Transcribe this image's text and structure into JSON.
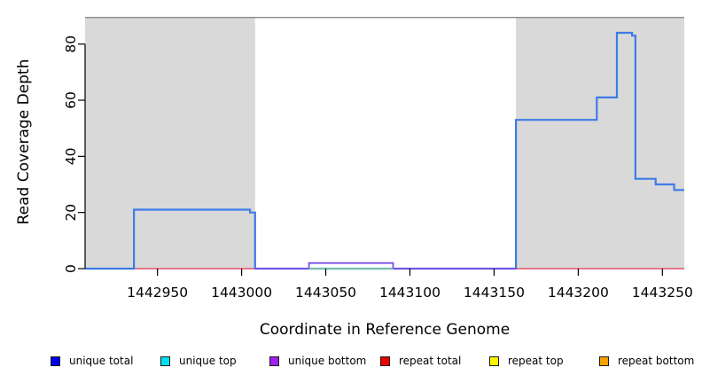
{
  "figure": {
    "x_axis_title": "Coordinate in Reference Genome",
    "y_axis_title": "Read Coverage Depth",
    "background_color": "#ffffff"
  },
  "legend": {
    "items": [
      {
        "label": "unique total",
        "color": "#0000ee"
      },
      {
        "label": "unique top",
        "color": "#00e0ee"
      },
      {
        "label": "unique bottom",
        "color": "#a020f0"
      },
      {
        "label": "repeat total",
        "color": "#ee0000"
      },
      {
        "label": "repeat top",
        "color": "#f7f700"
      },
      {
        "label": "repeat bottom",
        "color": "#f5a300"
      }
    ]
  },
  "chart_data": {
    "type": "line",
    "subtype": "step-coverage",
    "title": "",
    "xlabel": "Coordinate in Reference Genome",
    "ylabel": "Read Coverage Depth",
    "x_range": [
      1442907,
      1443263
    ],
    "y_range": [
      0,
      89.7
    ],
    "x_ticks": [
      1442950,
      1443000,
      1443050,
      1443100,
      1443150,
      1443200,
      1443250
    ],
    "y_ticks": [
      0,
      20,
      40,
      60,
      80
    ],
    "grid": false,
    "legend_position": "bottom",
    "repeat_region_fill": "#d9d9d9",
    "top_border_color": "#8a8a8a",
    "axis_color": "#000000",
    "repeat_regions": [
      [
        1442907,
        1443008
      ],
      [
        1443163,
        1443263
      ]
    ],
    "series": [
      {
        "name": "unique total",
        "color": "#3d7be8",
        "width": 2.2,
        "points": [
          [
            1442907,
            0
          ],
          [
            1442936,
            0
          ],
          [
            1442936,
            21
          ],
          [
            1443005,
            21
          ],
          [
            1443005,
            20
          ],
          [
            1443008,
            20
          ],
          [
            1443008,
            0
          ],
          [
            1443163,
            0
          ],
          [
            1443163,
            53
          ],
          [
            1443211,
            53
          ],
          [
            1443211,
            61
          ],
          [
            1443223,
            61
          ],
          [
            1443223,
            84
          ],
          [
            1443232,
            84
          ],
          [
            1443232,
            83
          ],
          [
            1443234,
            83
          ],
          [
            1443234,
            32
          ],
          [
            1443246,
            32
          ],
          [
            1443246,
            30
          ],
          [
            1443257,
            30
          ],
          [
            1443257,
            28
          ],
          [
            1443263,
            28
          ]
        ]
      },
      {
        "name": "unique bottom",
        "color": "#7b4fe8",
        "width": 1.8,
        "points": [
          [
            1443008,
            0
          ],
          [
            1443040,
            0
          ],
          [
            1443040,
            2
          ],
          [
            1443090,
            2
          ],
          [
            1443090,
            0
          ],
          [
            1443163,
            0
          ]
        ]
      }
    ],
    "series_constant_zero": [
      "unique top",
      "repeat total",
      "repeat top",
      "repeat bottom"
    ],
    "zero_line_under": [
      {
        "from": 1442907,
        "to": 1443008,
        "color": "#e8506e"
      },
      {
        "from": 1443163,
        "to": 1443263,
        "color": "#e8506e"
      }
    ],
    "zero_line_over": [
      {
        "from": 1443040,
        "to": 1443090,
        "color": "#8fd88f"
      }
    ]
  }
}
